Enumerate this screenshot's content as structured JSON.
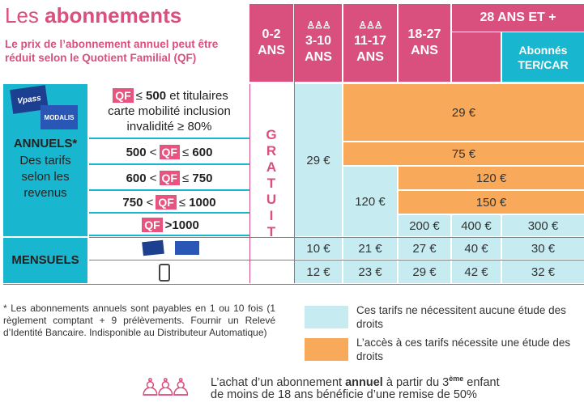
{
  "title": {
    "part1": "Les",
    "part2": "abonnements"
  },
  "subtitle": "Le prix de l’abonnement annuel peut être réduit selon le Quotient Familial (QF)",
  "headers": {
    "col1": {
      "line1": "0-2",
      "line2": "ANS"
    },
    "col2": {
      "line1": "3-10",
      "line2": "ANS"
    },
    "col3": {
      "line1": "11-17",
      "line2": "ANS"
    },
    "col4": {
      "line1": "18-27",
      "line2": "ANS"
    },
    "col5": "28 ANS ET +",
    "ter": {
      "line1": "Abonnés",
      "line2": "TER/CAR"
    }
  },
  "left": {
    "card1": "Vpass",
    "card2": "MODALIS",
    "annuels": "ANNUELS*",
    "annuels_desc1": "Des tarifs",
    "annuels_desc2": "selon les",
    "annuels_desc3": "revenus",
    "mensuels": "MENSUELS"
  },
  "qf_label": "QF",
  "qf_rows": {
    "r1": {
      "leq": "≤",
      "val": "500",
      "rest": "et titulaires",
      "line2": "carte mobilité inclusion",
      "line3": "invalidité ≥ 80%"
    },
    "r2": {
      "left": "500",
      "lt": "<",
      "leq": "≤",
      "right": "600"
    },
    "r3": {
      "left": "600",
      "lt": "<",
      "leq": "≤",
      "right": "750"
    },
    "r4": {
      "left": "750",
      "lt": "<",
      "leq": "≤",
      "right": "1000"
    },
    "r5": {
      "gt": ">1000"
    }
  },
  "gratuit": [
    "G",
    "R",
    "A",
    "T",
    "U",
    "I",
    "T"
  ],
  "prices": {
    "p_3_10_annual": "29 €",
    "p_row1": "29 €",
    "p_row2": "75 €",
    "p_row3": "120 €",
    "p_row4": "150 €",
    "p_11_17_annual": "120 €",
    "p_row5_18_27": "200 €",
    "p_row5_28": "400 €",
    "p_row5_ter": "300 €",
    "m1": [
      "10 €",
      "21 €",
      "27 €",
      "40 €",
      "30 €"
    ],
    "m2": [
      "12 €",
      "23 €",
      "29 €",
      "42 €",
      "32 €"
    ]
  },
  "footnote": "* Les abonnements annuels sont payables en 1 ou 10 fois (1 règlement comptant + 9 prélèvements. Fournir un Relevé d’Identité Bancaire. Indisponible au Distributeur Automatique)",
  "legend": {
    "blue": "Ces tarifs ne  nécessitent  aucune étude des droits",
    "orange": "L’accès à ces tarifs nécessite  une étude des droits"
  },
  "promo": {
    "p1": "L’achat d’un abonnement",
    "bold": "annuel",
    "p2": "à partir du 3",
    "sup": "ème",
    "p3": "enfant",
    "line2": "de moins  de 18 ans bénéficie d’une remise de 50%"
  },
  "colors": {
    "pink": "#d94f7e",
    "teal": "#18b7cf",
    "lightblue": "#c6ebf1",
    "orange": "#f9a95a"
  }
}
